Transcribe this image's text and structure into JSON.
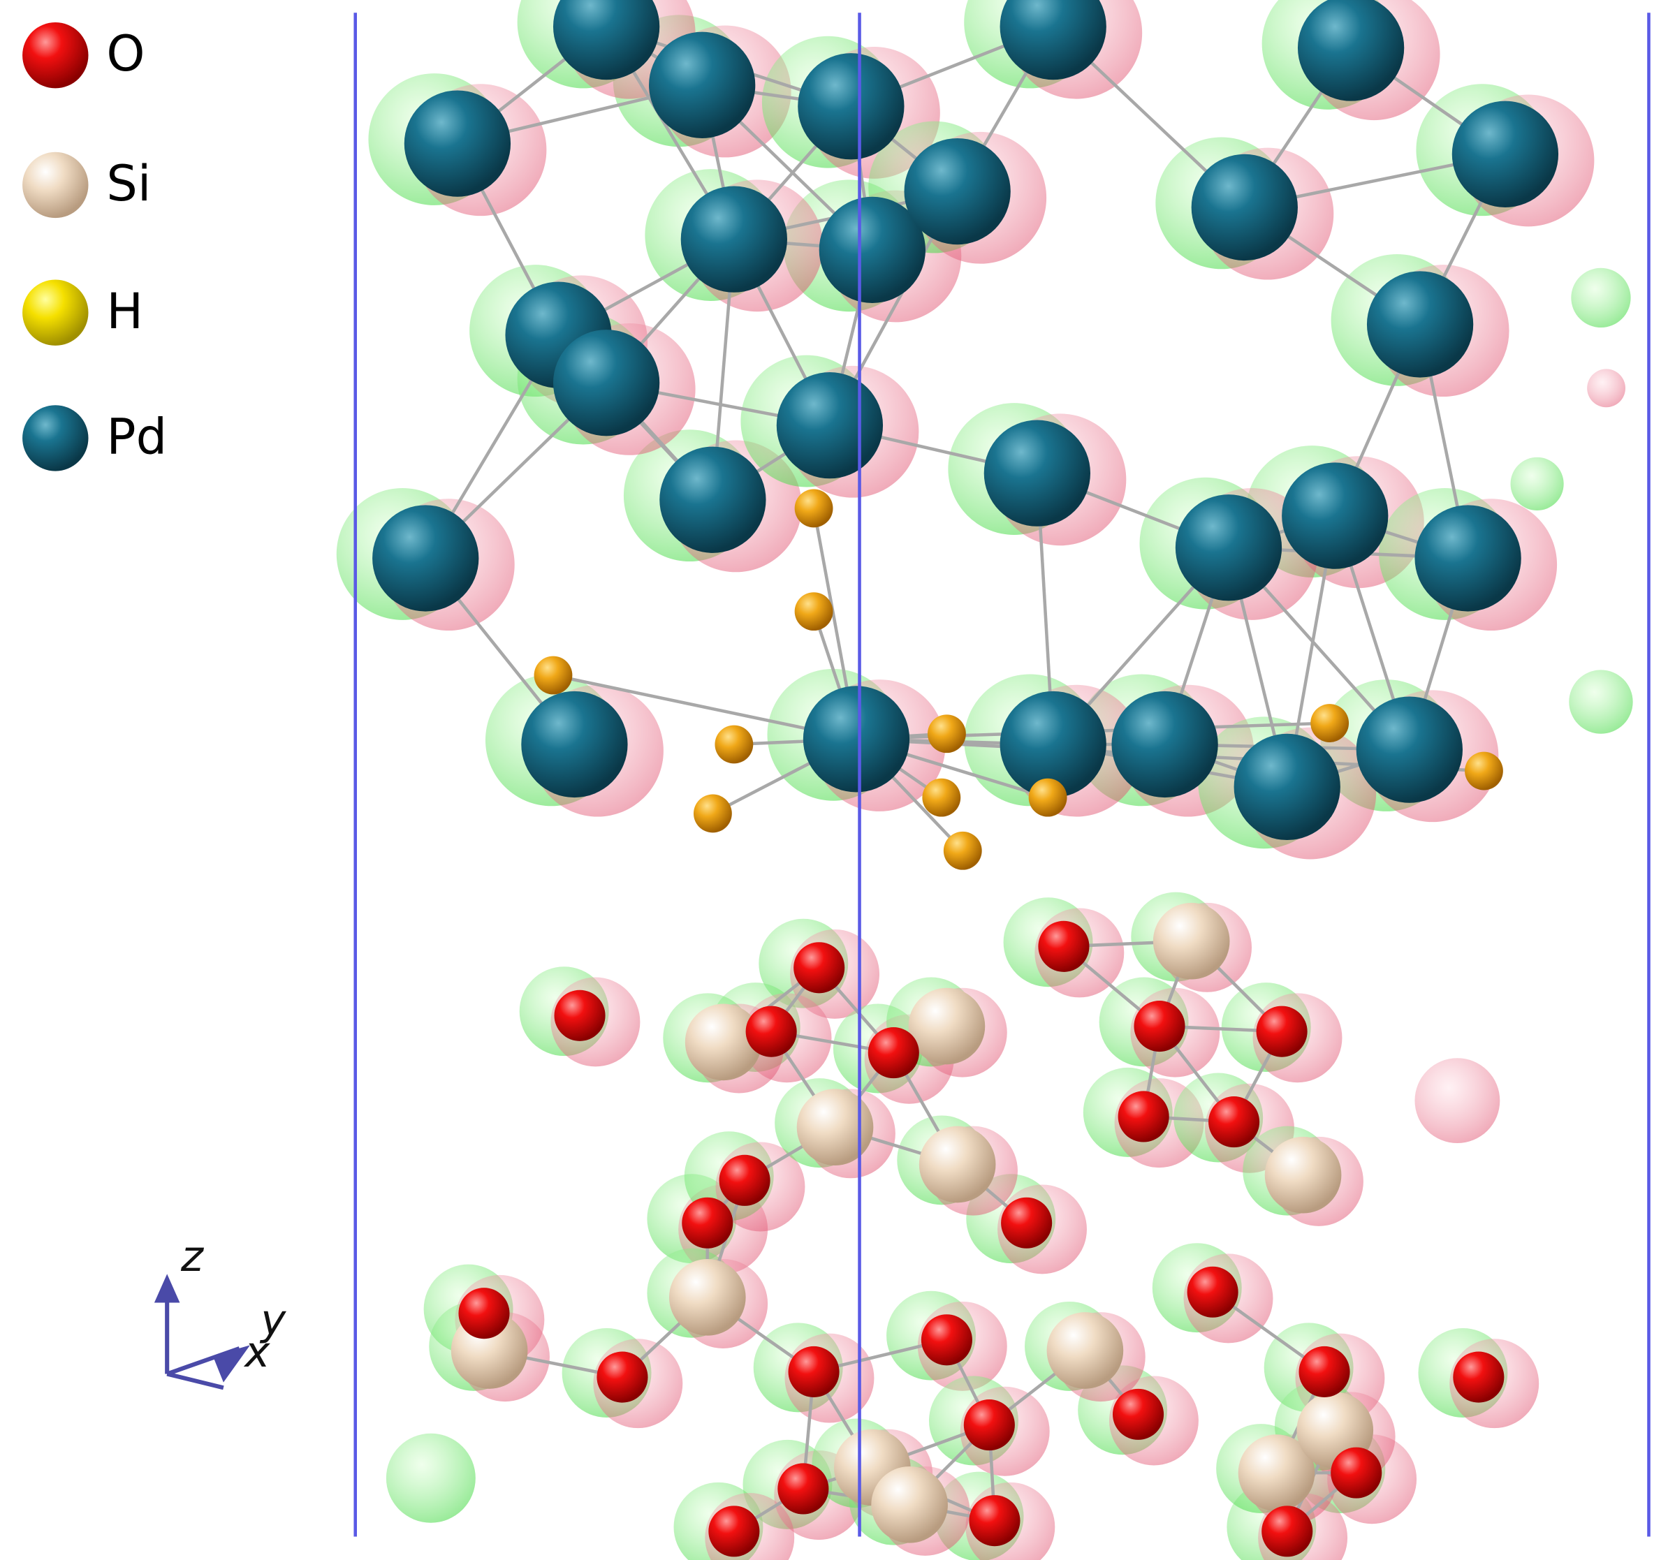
{
  "legend": {
    "items": [
      {
        "label": "O"
      },
      {
        "label": "Si"
      },
      {
        "label": "H"
      },
      {
        "label": "Pd"
      }
    ]
  },
  "axes": {
    "z": "z",
    "y": "y",
    "x": "x"
  }
}
